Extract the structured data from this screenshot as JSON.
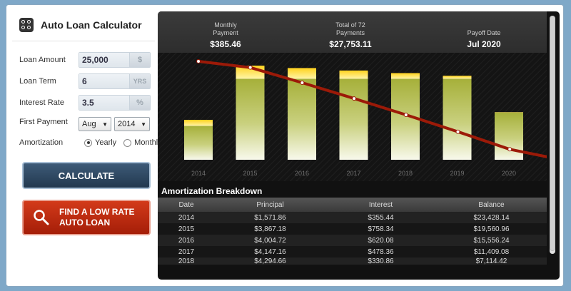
{
  "app": {
    "title": "Auto Loan Calculator"
  },
  "form": {
    "loan_amount": {
      "label": "Loan Amount",
      "value": "25,000",
      "unit": "$"
    },
    "loan_term": {
      "label": "Loan Term",
      "value": "6",
      "unit": "YRS"
    },
    "interest_rate": {
      "label": "Interest Rate",
      "value": "3.5",
      "unit": "%"
    },
    "first_payment": {
      "label": "First Payment",
      "month": "Aug",
      "year": "2014"
    },
    "amortization": {
      "label": "Amortization",
      "options": [
        "Yearly",
        "Monthly"
      ],
      "selected": "Yearly"
    }
  },
  "buttons": {
    "calculate": "CALCULATE",
    "promo_line1": "FIND A LOW RATE",
    "promo_line2": "AUTO LOAN"
  },
  "summary": {
    "monthly_label_1": "Monthly",
    "monthly_label_2": "Payment",
    "monthly_value": "$385.46",
    "total_label_1": "Total of 72",
    "total_label_2": "Payments",
    "total_value": "$27,753.11",
    "payoff_label": "Payoff Date",
    "payoff_value": "Jul 2020"
  },
  "chart_data": {
    "type": "bar",
    "categories": [
      "2014",
      "2015",
      "2016",
      "2017",
      "2018",
      "2019",
      "2020"
    ],
    "series": [
      {
        "values": [
          1927.3,
          4625.52,
          4624.8,
          4625.52,
          4625.52,
          4625.52,
          2698.23
        ]
      },
      {
        "values": [
          355.44,
          758.34,
          620.08,
          478.36,
          330.86,
          177.84,
          25.2
        ]
      },
      {
        "type": "line",
        "values": [
          23428.14,
          19560.96,
          15556.24,
          11409.08,
          7114.42,
          2666.74,
          0
        ]
      }
    ],
    "colors": {
      "principal": "#a8b23a",
      "interest": "#ffe14a",
      "balance": "#a01a0a"
    }
  },
  "breakdown": {
    "title": "Amortization Breakdown",
    "columns": [
      "Date",
      "Principal",
      "Interest",
      "Balance"
    ],
    "rows": [
      [
        "2014",
        "$1,571.86",
        "$355.44",
        "$23,428.14"
      ],
      [
        "2015",
        "$3,867.18",
        "$758.34",
        "$19,560.96"
      ],
      [
        "2016",
        "$4,004.72",
        "$620.08",
        "$15,556.24"
      ],
      [
        "2017",
        "$4,147.16",
        "$478.36",
        "$11,409.08"
      ],
      [
        "2018",
        "$4,294.66",
        "$330.86",
        "$7,114.42"
      ]
    ]
  }
}
